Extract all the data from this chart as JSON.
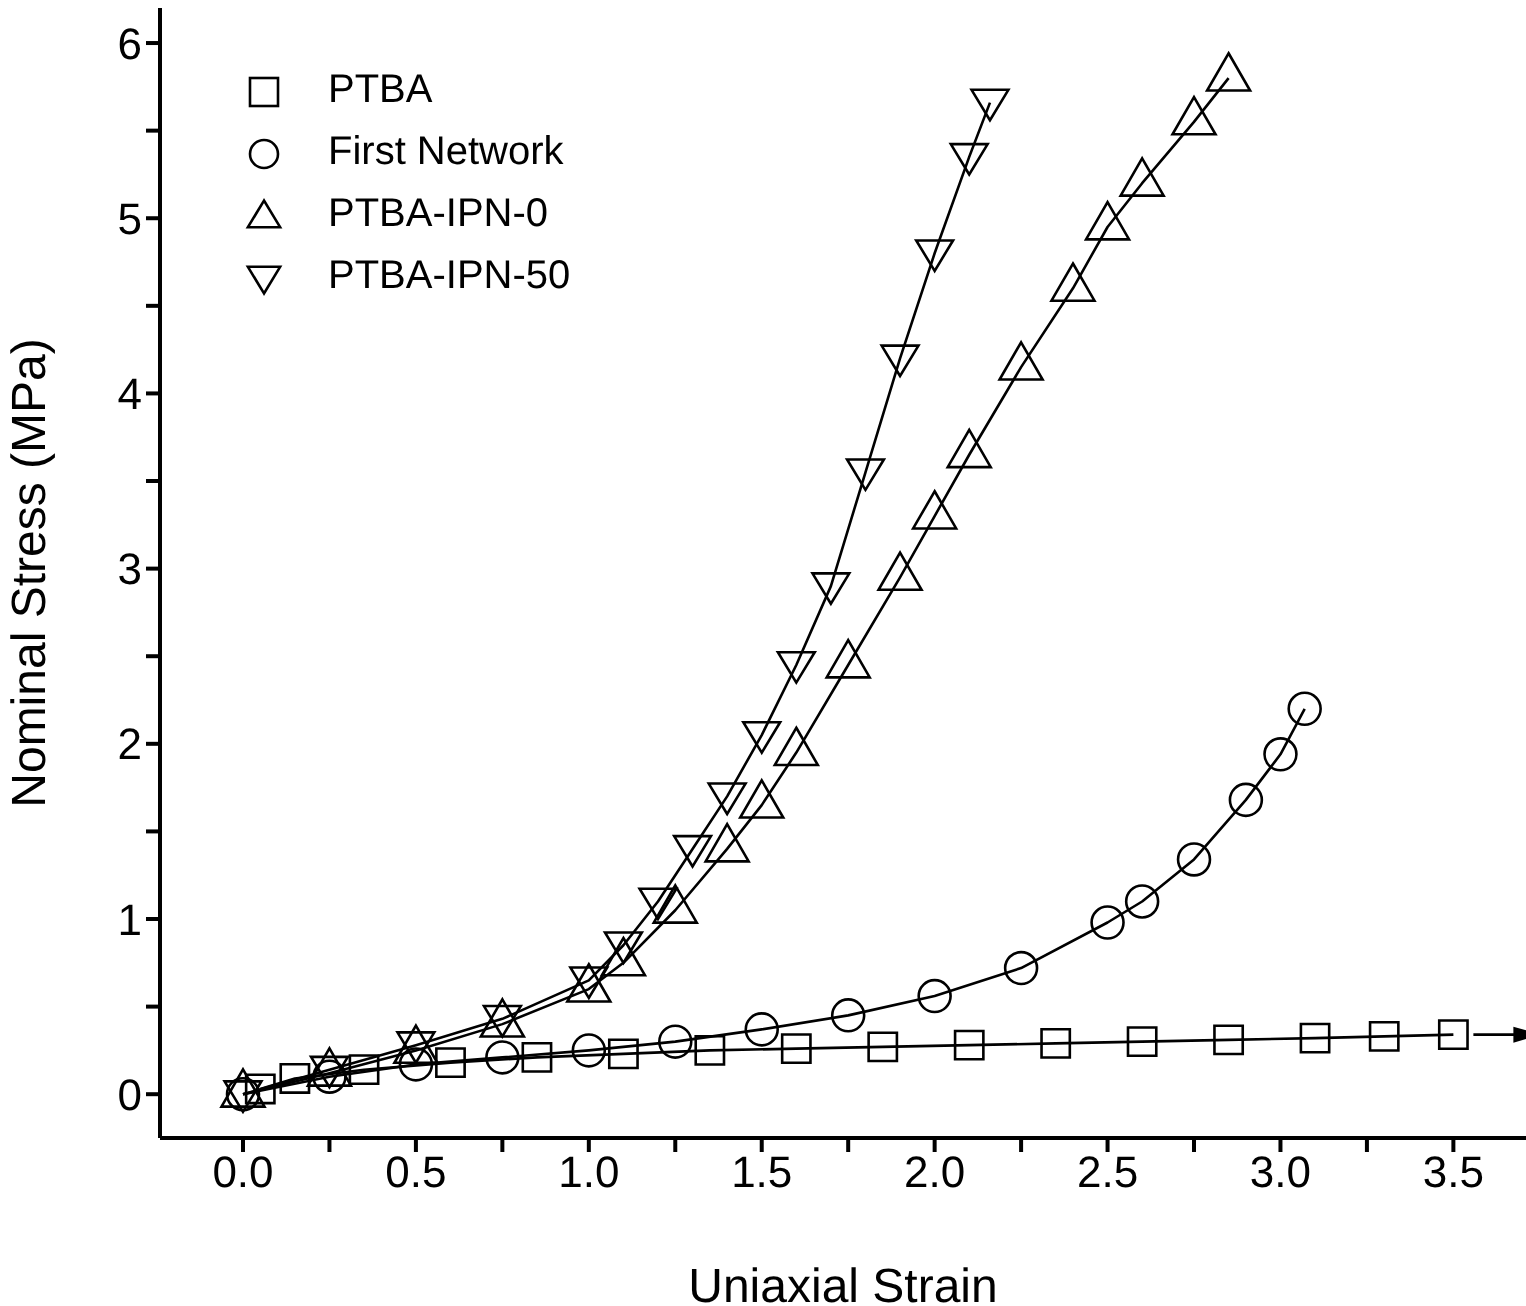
{
  "chart_data": {
    "type": "line",
    "xlabel": "Uniaxial Strain",
    "ylabel": "Nominal Stress (MPa)",
    "xlim": [
      -0.24,
      3.71
    ],
    "ylim": [
      -0.25,
      6.2
    ],
    "xticks": [
      {
        "value": 0,
        "label": "0.0"
      },
      {
        "value": 0.25,
        "label": null
      },
      {
        "value": 0.5,
        "label": "0.5"
      },
      {
        "value": 0.75,
        "label": null
      },
      {
        "value": 1,
        "label": "1.0"
      },
      {
        "value": 1.25,
        "label": null
      },
      {
        "value": 1.5,
        "label": "1.5"
      },
      {
        "value": 1.75,
        "label": null
      },
      {
        "value": 2,
        "label": "2.0"
      },
      {
        "value": 2.25,
        "label": null
      },
      {
        "value": 2.5,
        "label": "2.5"
      },
      {
        "value": 2.75,
        "label": null
      },
      {
        "value": 3,
        "label": "3.0"
      },
      {
        "value": 3.25,
        "label": null
      },
      {
        "value": 3.5,
        "label": "3.5"
      }
    ],
    "yticks": [
      0,
      {
        "value": 0.5,
        "label": null
      },
      1,
      {
        "value": 1.5,
        "label": null
      },
      2,
      {
        "value": 2.5,
        "label": null
      },
      3,
      {
        "value": 3.5,
        "label": null
      },
      4,
      {
        "value": 4.5,
        "label": null
      },
      5,
      {
        "value": 5.5,
        "label": null
      },
      6
    ],
    "grid": false,
    "legend": "top left",
    "line_style": "solid",
    "series": [
      {
        "name": "PTBA",
        "color": "#000000",
        "marker": "square",
        "x": [
          0.05,
          0.15,
          0.35,
          0.6,
          0.85,
          1.1,
          1.35,
          1.6,
          1.85,
          2.1,
          2.35,
          2.6,
          2.85,
          3.1,
          3.3,
          3.5
        ],
        "values": [
          0.03,
          0.09,
          0.14,
          0.18,
          0.21,
          0.23,
          0.25,
          0.26,
          0.27,
          0.28,
          0.29,
          0.3,
          0.31,
          0.32,
          0.33,
          0.34
        ]
      },
      {
        "name": "First Network",
        "color": "#000000",
        "marker": "circle",
        "x": [
          0,
          0.25,
          0.5,
          0.75,
          1.0,
          1.25,
          1.5,
          1.75,
          2.0,
          2.25,
          2.5,
          2.6,
          2.75,
          2.9,
          3.0,
          3.07
        ],
        "values": [
          0,
          0.1,
          0.17,
          0.21,
          0.25,
          0.3,
          0.37,
          0.45,
          0.56,
          0.72,
          0.98,
          1.1,
          1.34,
          1.68,
          1.94,
          2.2
        ]
      },
      {
        "name": "PTBA-IPN-0",
        "color": "#000000",
        "marker": "triangle",
        "x": [
          0,
          0.25,
          0.5,
          0.75,
          1.0,
          1.1,
          1.25,
          1.4,
          1.5,
          1.6,
          1.75,
          1.9,
          2.0,
          2.1,
          2.25,
          2.4,
          2.5,
          2.6,
          2.75,
          2.85
        ],
        "values": [
          0,
          0.12,
          0.25,
          0.4,
          0.6,
          0.75,
          1.05,
          1.4,
          1.65,
          1.95,
          2.45,
          2.95,
          3.3,
          3.65,
          4.15,
          4.6,
          4.95,
          5.2,
          5.55,
          5.8
        ]
      },
      {
        "name": "PTBA-IPN-50",
        "color": "#000000",
        "marker": "triangle-down",
        "x": [
          0,
          0.25,
          0.5,
          0.75,
          1.0,
          1.1,
          1.2,
          1.3,
          1.4,
          1.5,
          1.6,
          1.7,
          1.8,
          1.9,
          2.0,
          2.1,
          2.16
        ],
        "values": [
          0,
          0.14,
          0.28,
          0.43,
          0.65,
          0.85,
          1.1,
          1.4,
          1.7,
          2.05,
          2.45,
          2.9,
          3.55,
          4.2,
          4.8,
          5.35,
          5.66
        ]
      }
    ]
  }
}
